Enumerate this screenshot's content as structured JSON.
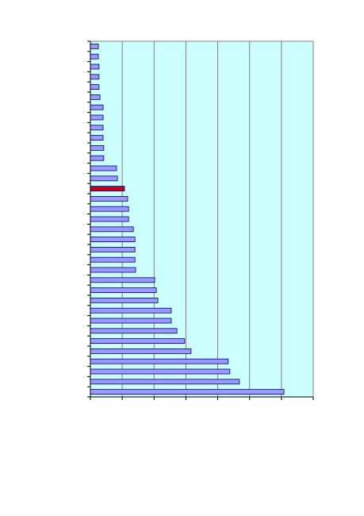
{
  "chart_data": {
    "type": "barh",
    "categories": [
      null,
      null,
      null,
      null,
      null,
      null,
      null,
      null,
      null,
      null,
      null,
      null,
      null,
      null,
      null,
      null,
      null,
      null,
      null,
      null,
      null,
      null,
      null,
      null,
      null,
      null,
      null,
      null,
      null,
      null,
      null,
      null,
      null,
      null,
      null
    ],
    "values": [
      0.25,
      0.25,
      0.27,
      0.27,
      0.27,
      0.3,
      0.4,
      0.4,
      0.4,
      0.4,
      0.42,
      0.42,
      0.82,
      0.85,
      1.07,
      1.17,
      1.2,
      1.2,
      1.35,
      1.4,
      1.4,
      1.4,
      1.42,
      2.02,
      2.07,
      2.12,
      2.54,
      2.54,
      2.72,
      2.96,
      3.16,
      4.33,
      4.38,
      4.68,
      6.08
    ],
    "colors": [
      "#9999ff",
      "#9999ff",
      "#9999ff",
      "#9999ff",
      "#9999ff",
      "#9999ff",
      "#9999ff",
      "#9999ff",
      "#9999ff",
      "#9999ff",
      "#9999ff",
      "#9999ff",
      "#9999ff",
      "#9999ff",
      "#cc0000",
      "#9999ff",
      "#9999ff",
      "#9999ff",
      "#9999ff",
      "#9999ff",
      "#9999ff",
      "#9999ff",
      "#9999ff",
      "#9999ff",
      "#9999ff",
      "#9999ff",
      "#9999ff",
      "#9999ff",
      "#9999ff",
      "#9999ff",
      "#9999ff",
      "#9999ff",
      "#9999ff",
      "#9999ff",
      "#9999ff"
    ],
    "xlim": [
      0,
      7
    ],
    "xticks": [
      0,
      1,
      2,
      3,
      4,
      5,
      6,
      7
    ],
    "grid": true,
    "plot_background": "#ccffff"
  }
}
